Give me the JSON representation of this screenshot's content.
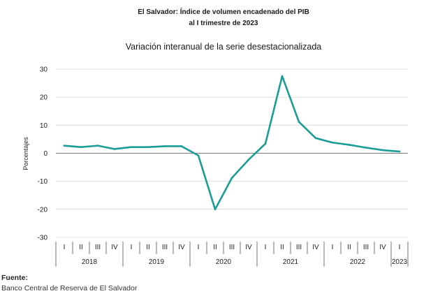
{
  "chart_data": {
    "type": "line",
    "title_line1": "El Salvador: Índice de volumen encadenado del PIB",
    "title_line2": "al I trimestre de 2023",
    "subtitle": "Variación interanual de la serie desestacionalizada",
    "ylabel": "Porcentajes",
    "xlabel": "",
    "ylim": [
      -30,
      30
    ],
    "yticks": [
      30,
      20,
      10,
      0,
      -10,
      -20,
      -30
    ],
    "grid": true,
    "legend": "none",
    "line_color": "#1a9c97",
    "quarters": [
      "I",
      "II",
      "III",
      "IV",
      "I",
      "II",
      "III",
      "IV",
      "I",
      "II",
      "III",
      "IV",
      "I",
      "II",
      "III",
      "IV",
      "I",
      "II",
      "III",
      "IV",
      "I"
    ],
    "years": [
      {
        "label": "2018",
        "start": 0,
        "end": 3
      },
      {
        "label": "2019",
        "start": 4,
        "end": 7
      },
      {
        "label": "2020",
        "start": 8,
        "end": 11
      },
      {
        "label": "2021",
        "start": 12,
        "end": 15
      },
      {
        "label": "2022",
        "start": 16,
        "end": 19
      },
      {
        "label": "2023",
        "start": 20,
        "end": 20
      }
    ],
    "series": [
      {
        "values": [
          2.7,
          2.2,
          2.7,
          1.5,
          2.2,
          2.2,
          2.5,
          2.5,
          -0.8,
          -20.0,
          -8.8,
          -2.3,
          3.4,
          27.5,
          11.2,
          5.4,
          3.8,
          3.0,
          2.0,
          1.1,
          0.6
        ]
      }
    ]
  },
  "footer": {
    "source_label": "Fuente:",
    "source_text": "Banco Central de Reserva de El Salvador"
  }
}
